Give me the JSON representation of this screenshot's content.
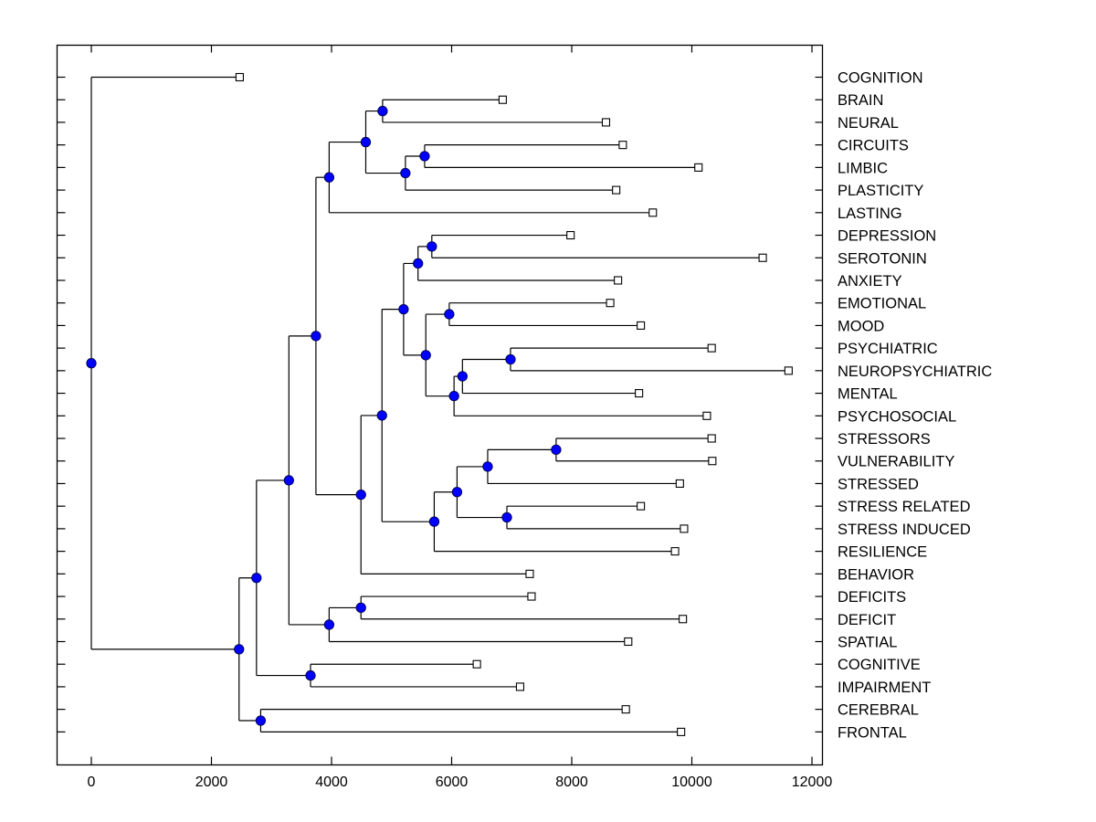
{
  "chart_data": {
    "type": "dendrogram",
    "title": "",
    "xlabel": "",
    "ylabel": "",
    "xlim": [
      -600,
      12150
    ],
    "x_ticks": [
      0,
      2000,
      4000,
      6000,
      8000,
      10000,
      12000
    ],
    "x_tick_labels": [
      "0",
      "2000",
      "4000",
      "6000",
      "8000",
      "10000",
      "12000"
    ],
    "grid": false,
    "leaves": [
      {
        "label": "COGNITION",
        "value": 2470
      },
      {
        "label": "BRAIN",
        "value": 6850
      },
      {
        "label": "NEURAL",
        "value": 8570
      },
      {
        "label": "CIRCUITS",
        "value": 8850
      },
      {
        "label": "LIMBIC",
        "value": 10110
      },
      {
        "label": "PLASTICITY",
        "value": 8740
      },
      {
        "label": "LASTING",
        "value": 9350
      },
      {
        "label": "DEPRESSION",
        "value": 7980
      },
      {
        "label": "SEROTONIN",
        "value": 11180
      },
      {
        "label": "ANXIETY",
        "value": 8770
      },
      {
        "label": "EMOTIONAL",
        "value": 8640
      },
      {
        "label": "MOOD",
        "value": 9150
      },
      {
        "label": "PSYCHIATRIC",
        "value": 10330
      },
      {
        "label": "NEUROPSYCHIATRIC",
        "value": 11610
      },
      {
        "label": "MENTAL",
        "value": 9120
      },
      {
        "label": "PSYCHOSOCIAL",
        "value": 10250
      },
      {
        "label": "STRESSORS",
        "value": 10330
      },
      {
        "label": "VULNERABILITY",
        "value": 10340
      },
      {
        "label": "STRESSED",
        "value": 9800
      },
      {
        "label": "STRESS RELATED",
        "value": 9150
      },
      {
        "label": "STRESS INDUCED",
        "value": 9870
      },
      {
        "label": "RESILIENCE",
        "value": 9720
      },
      {
        "label": "BEHAVIOR",
        "value": 7300
      },
      {
        "label": "DEFICITS",
        "value": 7330
      },
      {
        "label": "DEFICIT",
        "value": 9850
      },
      {
        "label": "SPATIAL",
        "value": 8940
      },
      {
        "label": "COGNITIVE",
        "value": 6420
      },
      {
        "label": "IMPAIRMENT",
        "value": 7140
      },
      {
        "label": "CEREBRAL",
        "value": 8900
      },
      {
        "label": "FRONTAL",
        "value": 9820
      }
    ],
    "merges": [
      {
        "id": "n1",
        "value": 4850,
        "children": [
          "BRAIN",
          "NEURAL"
        ]
      },
      {
        "id": "n2",
        "value": 5550,
        "children": [
          "CIRCUITS",
          "LIMBIC"
        ]
      },
      {
        "id": "n3",
        "value": 5230,
        "children": [
          "n2",
          "PLASTICITY"
        ]
      },
      {
        "id": "n4",
        "value": 4570,
        "children": [
          "n1",
          "n3"
        ]
      },
      {
        "id": "n5",
        "value": 3960,
        "children": [
          "n4",
          "LASTING"
        ]
      },
      {
        "id": "n6",
        "value": 5670,
        "children": [
          "DEPRESSION",
          "SEROTONIN"
        ]
      },
      {
        "id": "n7",
        "value": 5440,
        "children": [
          "n6",
          "ANXIETY"
        ]
      },
      {
        "id": "n8",
        "value": 5960,
        "children": [
          "EMOTIONAL",
          "MOOD"
        ]
      },
      {
        "id": "n9",
        "value": 6980,
        "children": [
          "PSYCHIATRIC",
          "NEUROPSYCHIATRIC"
        ]
      },
      {
        "id": "n10",
        "value": 6180,
        "children": [
          "n9",
          "MENTAL"
        ]
      },
      {
        "id": "n11",
        "value": 6040,
        "children": [
          "n10",
          "PSYCHOSOCIAL"
        ]
      },
      {
        "id": "n12",
        "value": 5570,
        "children": [
          "n8",
          "n11"
        ]
      },
      {
        "id": "n13",
        "value": 5200,
        "children": [
          "n7",
          "n12"
        ]
      },
      {
        "id": "n14",
        "value": 7740,
        "children": [
          "STRESSORS",
          "VULNERABILITY"
        ]
      },
      {
        "id": "n15",
        "value": 6600,
        "children": [
          "n14",
          "STRESSED"
        ]
      },
      {
        "id": "n16",
        "value": 6920,
        "children": [
          "STRESS RELATED",
          "STRESS INDUCED"
        ]
      },
      {
        "id": "n17",
        "value": 6090,
        "children": [
          "n15",
          "n16"
        ]
      },
      {
        "id": "n18",
        "value": 5710,
        "children": [
          "n17",
          "RESILIENCE"
        ]
      },
      {
        "id": "n19",
        "value": 4840,
        "children": [
          "n13",
          "n18"
        ]
      },
      {
        "id": "n20",
        "value": 4490,
        "children": [
          "n19",
          "BEHAVIOR"
        ]
      },
      {
        "id": "n21",
        "value": 3740,
        "children": [
          "n5",
          "n20"
        ]
      },
      {
        "id": "n22",
        "value": 4490,
        "children": [
          "DEFICITS",
          "DEFICIT"
        ]
      },
      {
        "id": "n23",
        "value": 3960,
        "children": [
          "n22",
          "SPATIAL"
        ]
      },
      {
        "id": "n24",
        "value": 3290,
        "children": [
          "n21",
          "n23"
        ]
      },
      {
        "id": "n25",
        "value": 3650,
        "children": [
          "COGNITIVE",
          "IMPAIRMENT"
        ]
      },
      {
        "id": "n26",
        "value": 2750,
        "children": [
          "n24",
          "n25"
        ]
      },
      {
        "id": "n27",
        "value": 2820,
        "children": [
          "CEREBRAL",
          "FRONTAL"
        ]
      },
      {
        "id": "n28",
        "value": 2460,
        "children": [
          "n26",
          "n27"
        ]
      },
      {
        "id": "n29",
        "value": 0,
        "children": [
          "COGNITION",
          "n28"
        ]
      }
    ],
    "node_color": "#0000ff",
    "leaf_marker_color": "#ffffff",
    "line_color": "#000000"
  }
}
